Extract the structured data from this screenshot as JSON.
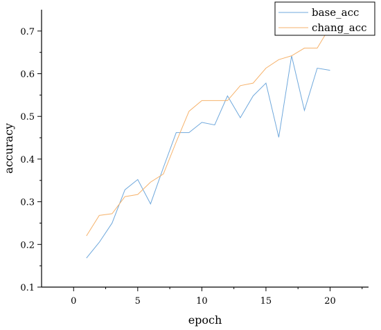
{
  "chart_data": {
    "type": "line",
    "title": "",
    "xlabel": "epoch",
    "ylabel": "accuracy",
    "xlim": [
      -2.5,
      23
    ],
    "ylim": [
      0.1,
      0.75
    ],
    "xticks": [
      0,
      5,
      10,
      15,
      20
    ],
    "yticks": [
      0.1,
      0.2,
      0.3,
      0.4,
      0.5,
      0.6,
      0.7
    ],
    "xtick_labels": [
      "0",
      "5",
      "10",
      "15",
      "20"
    ],
    "ytick_labels": [
      "0.1",
      "0.2",
      "0.3",
      "0.4",
      "0.5",
      "0.6",
      "0.7"
    ],
    "grid": false,
    "legend": "top-right",
    "x": [
      1,
      2,
      3,
      4,
      5,
      6,
      7,
      8,
      9,
      10,
      11,
      12,
      13,
      14,
      15,
      16,
      17,
      18,
      19,
      20
    ],
    "series": [
      {
        "name": "base_acc",
        "color": "#6fa8dc",
        "values": [
          0.168,
          0.205,
          0.25,
          0.328,
          0.352,
          0.295,
          0.38,
          0.462,
          0.462,
          0.486,
          0.48,
          0.548,
          0.497,
          0.548,
          0.578,
          0.451,
          0.642,
          0.514,
          0.613,
          0.608
        ]
      },
      {
        "name": "chang_acc",
        "color": "#f6b26b",
        "values": [
          0.22,
          0.268,
          0.272,
          0.312,
          0.317,
          0.346,
          0.365,
          0.44,
          0.512,
          0.537,
          0.537,
          0.537,
          0.572,
          0.578,
          0.613,
          0.633,
          0.642,
          0.66,
          0.66,
          0.71
        ]
      }
    ]
  }
}
